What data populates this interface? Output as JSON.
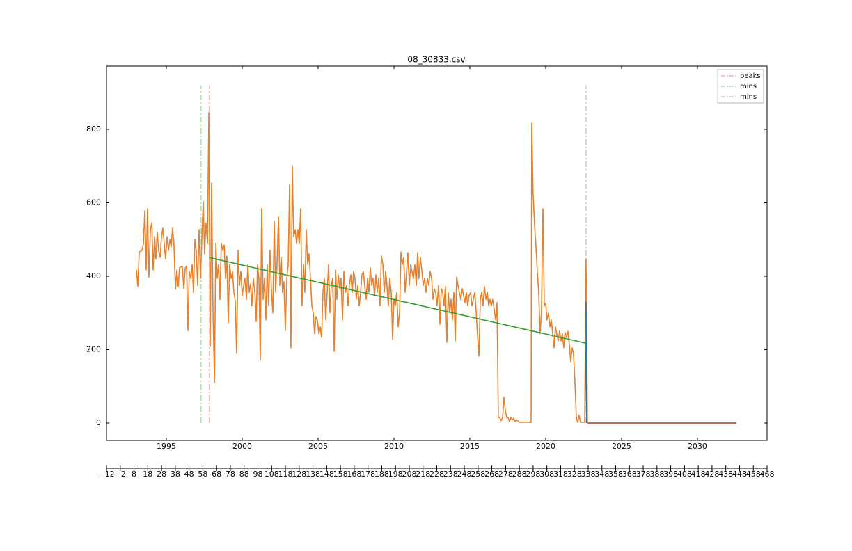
{
  "chart_data": {
    "type": "line",
    "title": "08_30833.csv",
    "xlim": [
      1991.055,
      2034.59
    ],
    "xticks": [
      1995,
      2000,
      2005,
      2010,
      2015,
      2020,
      2025,
      2030
    ],
    "ylim": [
      -47.4,
      972.5
    ],
    "yticks": [
      0,
      200,
      400,
      600,
      800
    ],
    "x2lim": [
      -12,
      468
    ],
    "x2ticks": [
      {
        "value": -12,
        "label": "−12"
      },
      {
        "value": -2,
        "label": "−2"
      },
      8,
      18,
      28,
      38,
      48,
      58,
      68,
      78,
      88,
      98,
      108,
      118,
      128,
      138,
      148,
      158,
      168,
      178,
      188,
      198,
      208,
      218,
      228,
      238,
      248,
      258,
      268,
      278,
      288,
      298,
      308,
      318,
      328,
      338,
      348,
      358,
      368,
      378,
      388,
      398,
      408,
      418,
      428,
      438,
      448,
      458,
      468
    ],
    "series": [
      {
        "color": "#e8812d",
        "x": [
          1993.03,
          1993.12,
          1993.21,
          1993.39,
          1993.49,
          1993.58,
          1993.67,
          1993.76,
          1993.85,
          1993.95,
          1994.04,
          1994.13,
          1994.22,
          1994.31,
          1994.4,
          1994.49,
          1994.59,
          1994.68,
          1994.77,
          1994.86,
          1994.95,
          1995.05,
          1995.14,
          1995.23,
          1995.32,
          1995.41,
          1995.5,
          1995.6,
          1995.69,
          1995.78,
          1995.87,
          1996.05,
          1996.15,
          1996.24,
          1996.33,
          1996.42,
          1996.51,
          1996.61,
          1996.7,
          1996.79,
          1996.88,
          1996.97,
          1997.06,
          1997.16,
          1997.25,
          1997.34,
          1997.43,
          1997.52,
          1997.61,
          1997.71,
          1997.8,
          1997.89,
          1997.98,
          1998.07,
          1998.17,
          1998.26,
          1998.35,
          1998.44,
          1998.53,
          1998.62,
          1998.72,
          1998.81,
          1998.9,
          1998.99,
          1999.08,
          1999.17,
          1999.27,
          1999.36,
          1999.45,
          1999.54,
          1999.63,
          1999.73,
          1999.82,
          1999.91,
          2000.0,
          2000.09,
          2000.18,
          2000.28,
          2000.37,
          2000.46,
          2000.55,
          2000.64,
          2000.73,
          2000.83,
          2000.92,
          2001.01,
          2001.1,
          2001.19,
          2001.28,
          2001.38,
          2001.47,
          2001.56,
          2001.65,
          2001.74,
          2001.83,
          2001.93,
          2002.02,
          2002.11,
          2002.2,
          2002.29,
          2002.39,
          2002.48,
          2002.57,
          2002.66,
          2002.75,
          2002.84,
          2002.94,
          2003.03,
          2003.12,
          2003.21,
          2003.3,
          2003.39,
          2003.49,
          2003.58,
          2003.67,
          2003.76,
          2003.85,
          2003.94,
          2004.04,
          2004.13,
          2004.22,
          2004.31,
          2004.4,
          2004.5,
          2004.59,
          2004.68,
          2004.77,
          2004.86,
          2004.95,
          2005.05,
          2005.14,
          2005.23,
          2005.32,
          2005.41,
          2005.5,
          2005.6,
          2005.69,
          2005.78,
          2005.87,
          2005.96,
          2006.06,
          2006.15,
          2006.24,
          2006.33,
          2006.42,
          2006.51,
          2006.61,
          2006.7,
          2006.79,
          2006.88,
          2006.97,
          2007.06,
          2007.16,
          2007.25,
          2007.34,
          2007.43,
          2007.52,
          2007.61,
          2007.71,
          2007.8,
          2007.89,
          2007.98,
          2008.07,
          2008.17,
          2008.26,
          2008.35,
          2008.44,
          2008.53,
          2008.62,
          2008.72,
          2008.81,
          2008.9,
          2008.99,
          2009.08,
          2009.17,
          2009.27,
          2009.36,
          2009.45,
          2009.54,
          2009.63,
          2009.72,
          2009.82,
          2009.91,
          2010.0,
          2010.09,
          2010.18,
          2010.28,
          2010.37,
          2010.46,
          2010.55,
          2010.64,
          2010.73,
          2010.83,
          2010.92,
          2011.01,
          2011.1,
          2011.19,
          2011.28,
          2011.38,
          2011.47,
          2011.56,
          2011.65,
          2011.74,
          2011.84,
          2011.93,
          2012.02,
          2012.11,
          2012.2,
          2012.29,
          2012.39,
          2012.48,
          2012.57,
          2012.66,
          2012.75,
          2012.84,
          2012.94,
          2013.03,
          2013.12,
          2013.21,
          2013.3,
          2013.39,
          2013.49,
          2013.58,
          2013.67,
          2013.76,
          2013.85,
          2013.95,
          2014.04,
          2014.13,
          2014.22,
          2014.31,
          2014.4,
          2014.5,
          2014.59,
          2014.68,
          2014.77,
          2014.86,
          2014.95,
          2015.05,
          2015.14,
          2015.23,
          2015.32,
          2015.41,
          2015.5,
          2015.6,
          2015.69,
          2015.78,
          2015.87,
          2015.96,
          2016.06,
          2016.15,
          2016.24,
          2016.33,
          2016.42,
          2016.51,
          2016.61,
          2016.7,
          2016.79,
          2016.88,
          2016.97,
          2017.06,
          2017.16,
          2017.25,
          2017.34,
          2017.43,
          2017.52,
          2017.61,
          2017.71,
          2017.8,
          2017.89,
          2017.98,
          2018.07,
          2018.16,
          2018.26,
          2018.9,
          2019.04,
          2019.08,
          2019.17,
          2019.27,
          2019.36,
          2019.45,
          2019.54,
          2019.63,
          2019.72,
          2019.82,
          2019.91,
          2020.0,
          2020.09,
          2020.18,
          2020.28,
          2020.37,
          2020.46,
          2020.55,
          2020.64,
          2020.73,
          2020.83,
          2020.92,
          2021.01,
          2021.1,
          2021.19,
          2021.28,
          2021.38,
          2021.47,
          2021.56,
          2021.65,
          2021.74,
          2021.83,
          2021.93,
          2022.02,
          2022.11,
          2022.2,
          2022.29,
          2022.57,
          2022.66,
          2022.75
        ],
        "values": [
          417,
          372,
          466,
          470,
          489,
          578,
          417,
          584,
          398,
          527,
          546,
          417,
          508,
          447,
          521,
          470,
          451,
          508,
          531,
          489,
          447,
          508,
          470,
          499,
          480,
          531,
          489,
          364,
          417,
          372,
          423,
          427,
          366,
          421,
          428,
          252,
          413,
          394,
          432,
          356,
          499,
          470,
          375,
          527,
          394,
          504,
          603,
          461,
          546,
          489,
          846,
          209,
          654,
          319,
          110,
          489,
          394,
          432,
          337,
          489,
          470,
          485,
          394,
          455,
          273,
          432,
          394,
          413,
          356,
          334,
          190,
          470,
          375,
          413,
          347,
          375,
          394,
          337,
          432,
          356,
          379,
          319,
          394,
          356,
          277,
          432,
          394,
          171,
          584,
          337,
          394,
          281,
          432,
          319,
          470,
          356,
          300,
          550,
          356,
          432,
          561,
          375,
          451,
          356,
          385,
          252,
          394,
          432,
          650,
          205,
          701,
          508,
          527,
          489,
          527,
          489,
          584,
          319,
          432,
          356,
          527,
          432,
          461,
          394,
          319,
          300,
          243,
          290,
          281,
          243,
          262,
          233,
          356,
          394,
          281,
          356,
          432,
          300,
          375,
          394,
          195,
          417,
          337,
          404,
          366,
          394,
          281,
          413,
          356,
          375,
          319,
          375,
          404,
          356,
          413,
          394,
          337,
          375,
          319,
          356,
          404,
          413,
          375,
          337,
          394,
          356,
          423,
          375,
          394,
          347,
          404,
          356,
          394,
          319,
          455,
          432,
          356,
          413,
          375,
          319,
          394,
          356,
          229,
          337,
          319,
          356,
          262,
          300,
          466,
          432,
          451,
          356,
          413,
          464,
          375,
          432,
          413,
          394,
          432,
          375,
          464,
          394,
          451,
          413,
          375,
          394,
          356,
          394,
          375,
          413,
          394,
          337,
          366,
          356,
          319,
          375,
          269,
          366,
          356,
          319,
          372,
          220,
          356,
          300,
          337,
          281,
          356,
          224,
          398,
          375,
          356,
          337,
          366,
          347,
          328,
          356,
          319,
          347,
          356,
          319,
          337,
          356,
          309,
          243,
          182,
          337,
          356,
          319,
          372,
          337,
          356,
          319,
          337,
          319,
          337,
          309,
          281,
          328,
          15,
          15,
          6,
          15,
          70,
          34,
          15,
          15,
          4,
          15,
          8,
          13,
          4,
          8,
          6,
          2,
          2,
          2,
          817,
          622,
          537,
          480,
          413,
          356,
          243,
          303,
          584,
          319,
          326,
          281,
          300,
          262,
          281,
          243,
          205,
          262,
          243,
          224,
          252,
          224,
          243,
          205,
          247,
          233,
          250,
          214,
          167,
          205,
          190,
          110,
          15,
          2,
          21,
          2,
          2,
          447,
          2
        ]
      },
      {
        "color": "#2ca02c",
        "x": [
          1997.8,
          2022.61,
          2022.71
        ],
        "values": [
          451,
          218,
          0
        ]
      },
      {
        "color": "#1f77b4",
        "x": [
          2022.66,
          2022.7
        ],
        "values": [
          330,
          0
        ]
      },
      {
        "color": "#a0401e",
        "x": [
          2022.75,
          2032.57
        ],
        "values": [
          0,
          0
        ]
      }
    ],
    "vlines": [
      {
        "name": "peaks",
        "x": 1997.84,
        "ymin": 0,
        "ymax": 920,
        "color": "#ff9b9b"
      },
      {
        "name": "mins",
        "x": 1997.29,
        "ymin": 0,
        "ymax": 920,
        "color": "#9fd49f"
      },
      {
        "name": "mins",
        "x": 2022.66,
        "ymin": 0,
        "ymax": 920,
        "color": "#9fd49f"
      }
    ],
    "legend": "upper right"
  }
}
